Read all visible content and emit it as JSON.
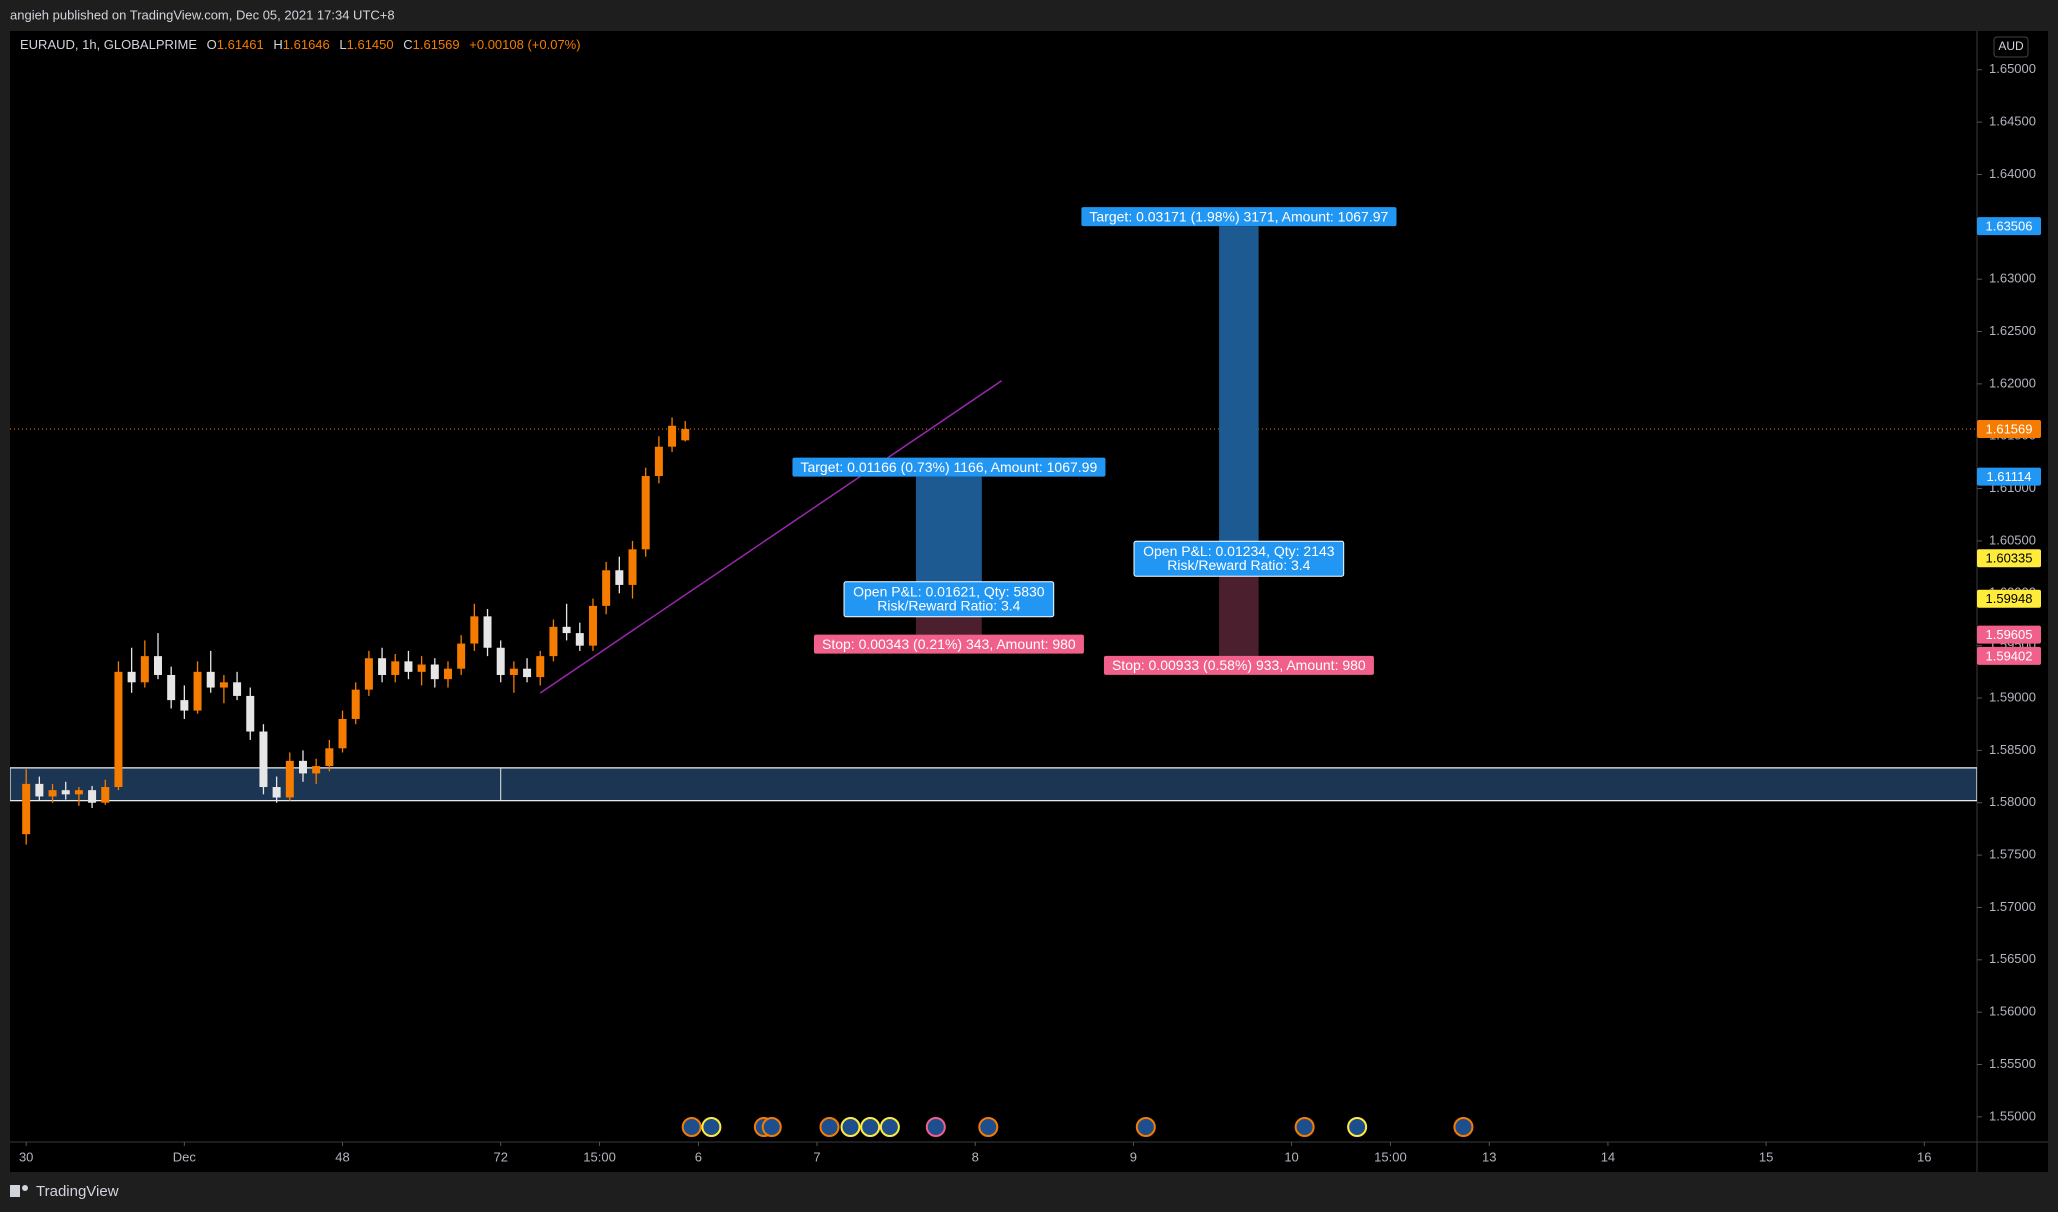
{
  "header": {
    "published": "angieh published on TradingView.com, Dec 05, 2021 17:34 UTC+8",
    "footer": "TradingView"
  },
  "chart_data": {
    "type": "candlestick",
    "symbol": "EURAUD, 1h, GLOBALPRIME",
    "ohlc_legend": [
      {
        "key": "O",
        "value": "1.61461"
      },
      {
        "key": "H",
        "value": "1.61646"
      },
      {
        "key": "L",
        "value": "1.61450"
      },
      {
        "key": "C",
        "value": "1.61569"
      }
    ],
    "change": "+0.00108 (+0.07%)",
    "currency": "AUD",
    "up_color": "#f57c00",
    "down_color": "#e6e6e6",
    "x": [
      0,
      2,
      4,
      6,
      8,
      10,
      12,
      14,
      16,
      18,
      20,
      22,
      24,
      26,
      28,
      30,
      32,
      34,
      36,
      38,
      40,
      42,
      44,
      46,
      48,
      50,
      52,
      54,
      56,
      58,
      60,
      62,
      64,
      66,
      68,
      70,
      72,
      74,
      76,
      78,
      80,
      82,
      84,
      86,
      88,
      90,
      92,
      94,
      96,
      98,
      100
    ],
    "ohlc": [
      [
        1.577,
        1.5832,
        1.576,
        1.5818
      ],
      [
        1.5818,
        1.5825,
        1.5802,
        1.5806
      ],
      [
        1.5806,
        1.5818,
        1.58,
        1.5812
      ],
      [
        1.5812,
        1.582,
        1.5803,
        1.5808
      ],
      [
        1.5808,
        1.5815,
        1.5797,
        1.5812
      ],
      [
        1.5812,
        1.5816,
        1.5795,
        1.58
      ],
      [
        1.58,
        1.5822,
        1.5798,
        1.5815
      ],
      [
        1.5815,
        1.5935,
        1.5812,
        1.5925
      ],
      [
        1.5925,
        1.5948,
        1.5905,
        1.5915
      ],
      [
        1.5915,
        1.5955,
        1.591,
        1.594
      ],
      [
        1.594,
        1.5962,
        1.5918,
        1.5922
      ],
      [
        1.5922,
        1.593,
        1.589,
        1.5898
      ],
      [
        1.5898,
        1.5912,
        1.588,
        1.5888
      ],
      [
        1.5888,
        1.5935,
        1.5885,
        1.5925
      ],
      [
        1.5925,
        1.5945,
        1.5905,
        1.591
      ],
      [
        1.591,
        1.5922,
        1.5895,
        1.5915
      ],
      [
        1.5915,
        1.5925,
        1.5898,
        1.5902
      ],
      [
        1.5902,
        1.591,
        1.586,
        1.5868
      ],
      [
        1.5868,
        1.5875,
        1.5808,
        1.5815
      ],
      [
        1.5815,
        1.5825,
        1.58,
        1.5805
      ],
      [
        1.5805,
        1.5848,
        1.5802,
        1.584
      ],
      [
        1.584,
        1.585,
        1.582,
        1.5828
      ],
      [
        1.5828,
        1.5842,
        1.5818,
        1.5835
      ],
      [
        1.5835,
        1.586,
        1.583,
        1.5852
      ],
      [
        1.5852,
        1.5888,
        1.5848,
        1.588
      ],
      [
        1.588,
        1.5915,
        1.5875,
        1.5908
      ],
      [
        1.5908,
        1.5945,
        1.5902,
        1.5938
      ],
      [
        1.5938,
        1.5948,
        1.5915,
        1.5922
      ],
      [
        1.5922,
        1.5942,
        1.5915,
        1.5935
      ],
      [
        1.5935,
        1.5945,
        1.5918,
        1.5925
      ],
      [
        1.5925,
        1.594,
        1.5912,
        1.5932
      ],
      [
        1.5932,
        1.5938,
        1.591,
        1.5918
      ],
      [
        1.5918,
        1.5935,
        1.591,
        1.5928
      ],
      [
        1.5928,
        1.596,
        1.5922,
        1.5952
      ],
      [
        1.5952,
        1.599,
        1.5945,
        1.5978
      ],
      [
        1.5978,
        1.5985,
        1.594,
        1.5948
      ],
      [
        1.5948,
        1.5955,
        1.5915,
        1.5922
      ],
      [
        1.5922,
        1.5935,
        1.5905,
        1.5928
      ],
      [
        1.5928,
        1.5938,
        1.5915,
        1.592
      ],
      [
        1.592,
        1.5945,
        1.5912,
        1.594
      ],
      [
        1.594,
        1.5975,
        1.5935,
        1.5968
      ],
      [
        1.5968,
        1.599,
        1.5955,
        1.5962
      ],
      [
        1.5962,
        1.5972,
        1.5945,
        1.595
      ],
      [
        1.595,
        1.5995,
        1.5945,
        1.5988
      ],
      [
        1.5988,
        1.603,
        1.598,
        1.6022
      ],
      [
        1.6022,
        1.6035,
        1.6,
        1.6008
      ],
      [
        1.6008,
        1.605,
        1.5995,
        1.6042
      ],
      [
        1.6042,
        1.612,
        1.6035,
        1.6112
      ],
      [
        1.6112,
        1.615,
        1.6105,
        1.614
      ],
      [
        1.614,
        1.6168,
        1.6135,
        1.616
      ],
      [
        1.61461,
        1.61646,
        1.6145,
        1.61569
      ]
    ],
    "xlim": [
      -2,
      296
    ],
    "xticks": [
      {
        "value": 0,
        "label": "30"
      },
      {
        "value": 24,
        "label": "Dec"
      },
      48,
      72,
      {
        "value": 87,
        "label": "15:00"
      },
      {
        "value": 102,
        "label": "6"
      },
      {
        "value": 120,
        "label": "7"
      },
      {
        "value": 144,
        "label": "8"
      },
      {
        "value": 168,
        "label": "9"
      },
      {
        "value": 192,
        "label": "10"
      },
      {
        "value": 207,
        "label": "15:00"
      },
      {
        "value": 222,
        "label": "13"
      },
      {
        "value": 240,
        "label": "14"
      },
      {
        "value": 264,
        "label": "15"
      },
      {
        "value": 288,
        "label": "16"
      }
    ],
    "ylim": [
      1.5476,
      1.6537
    ],
    "yticks": [
      {
        "value": 1.55,
        "label": "1.55000"
      },
      {
        "value": 1.555,
        "label": "1.55500"
      },
      {
        "value": 1.56,
        "label": "1.56000"
      },
      {
        "value": 1.565,
        "label": "1.56500"
      },
      {
        "value": 1.57,
        "label": "1.57000"
      },
      {
        "value": 1.575,
        "label": "1.57500"
      },
      {
        "value": 1.58,
        "label": "1.58000"
      },
      {
        "value": 1.585,
        "label": "1.58500"
      },
      {
        "value": 1.59,
        "label": "1.59000"
      },
      {
        "value": 1.595,
        "label": "1.59500"
      },
      {
        "value": 1.6,
        "label": "1.60000"
      },
      {
        "value": 1.605,
        "label": "1.60500"
      },
      {
        "value": 1.61,
        "label": "1.61000"
      },
      {
        "value": 1.615,
        "label": "1.61500"
      },
      {
        "value": 1.62,
        "label": "1.62000"
      },
      {
        "value": 1.625,
        "label": "1.62500"
      },
      {
        "value": 1.63,
        "label": "1.63000"
      },
      {
        "value": 1.635,
        "label": "1.63500"
      },
      {
        "value": 1.64,
        "label": "1.64000"
      },
      {
        "value": 1.645,
        "label": "1.64500"
      },
      {
        "value": 1.65,
        "label": "1.65000"
      }
    ],
    "last_price": 1.61569,
    "zone": {
      "low": 1.5802,
      "high": 1.58333,
      "x_divider": 72
    },
    "trend_line": {
      "x": [
        78,
        148
      ],
      "y": [
        1.59048,
        1.6203
      ],
      "color": "#9c27b0"
    },
    "positions": [
      {
        "x": [
          135,
          145
        ],
        "target": 1.61114,
        "entry": 1.59948,
        "stop": 1.59605,
        "target_label": "Target: 0.01166 (0.73%) 1166, Amount: 1067.99",
        "pnl_label": "Open P&L: 0.01621, Qty: 5830",
        "rr_label": "Risk/Reward Ratio: 3.4",
        "stop_label": "Stop: 0.00343 (0.21%) 343, Amount: 980"
      },
      {
        "x": [
          181,
          187
        ],
        "target": 1.63506,
        "entry": 1.60335,
        "stop": 1.59402,
        "target_label": "Target: 0.03171 (1.98%) 3171, Amount: 1067.97",
        "pnl_label": "Open P&L: 0.01234, Qty: 2143",
        "rr_label": "Risk/Reward Ratio: 3.4",
        "stop_label": "Stop: 0.00933 (0.58%) 933, Amount: 980"
      }
    ]
  }
}
